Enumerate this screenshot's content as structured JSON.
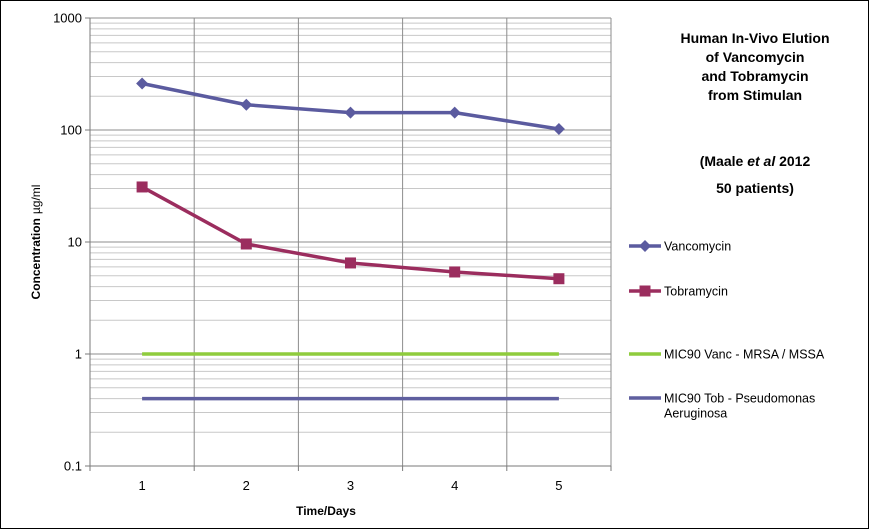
{
  "chart_data": {
    "type": "line",
    "y_scale": "log",
    "grid": true,
    "legend_position": "right",
    "xlabel": "Time/Days",
    "ylabel": "Concentration",
    "ylabel_unit": "µg/ml",
    "x": [
      1,
      2,
      3,
      4,
      5
    ],
    "x_tick_labels": [
      "1",
      "2",
      "3",
      "4",
      "5"
    ],
    "ylim": [
      0.1,
      1000
    ],
    "y_tick_labels": [
      "0.1",
      "1",
      "10",
      "100",
      "1000"
    ],
    "series": [
      {
        "name": "Vancomycin",
        "color": "#5b5b9f",
        "marker": "diamond",
        "values": [
          260,
          168,
          143,
          143,
          102
        ]
      },
      {
        "name": "Tobramycin",
        "color": "#9b2d5e",
        "marker": "square",
        "values": [
          31,
          9.6,
          6.5,
          5.4,
          4.7
        ]
      },
      {
        "name": "MIC90 Vanc - MRSA / MSSA",
        "color": "#8fcc3d",
        "marker": "none",
        "values": [
          1,
          1,
          1,
          1,
          1
        ]
      },
      {
        "name": "MIC90 Tob - Pseudomonas Aeruginosa",
        "color": "#5f5f9f",
        "marker": "none",
        "values": [
          0.4,
          0.4,
          0.4,
          0.4,
          0.4
        ]
      }
    ],
    "annotation": {
      "lines": [
        "Human In-Vivo Elution",
        "of Vancomycin",
        "and Tobramycin",
        "from Stimulan",
        "",
        "(Maale ",
        "et al",
        " 2012",
        "50 patients)"
      ]
    }
  },
  "legend": {
    "items": [
      [
        "Vancomycin"
      ],
      [
        "Tobramycin"
      ],
      [
        "MIC90 Vanc - MRSA / MSSA"
      ],
      [
        "MIC90 Tob - Pseudomonas",
        "Aeruginosa"
      ]
    ]
  }
}
